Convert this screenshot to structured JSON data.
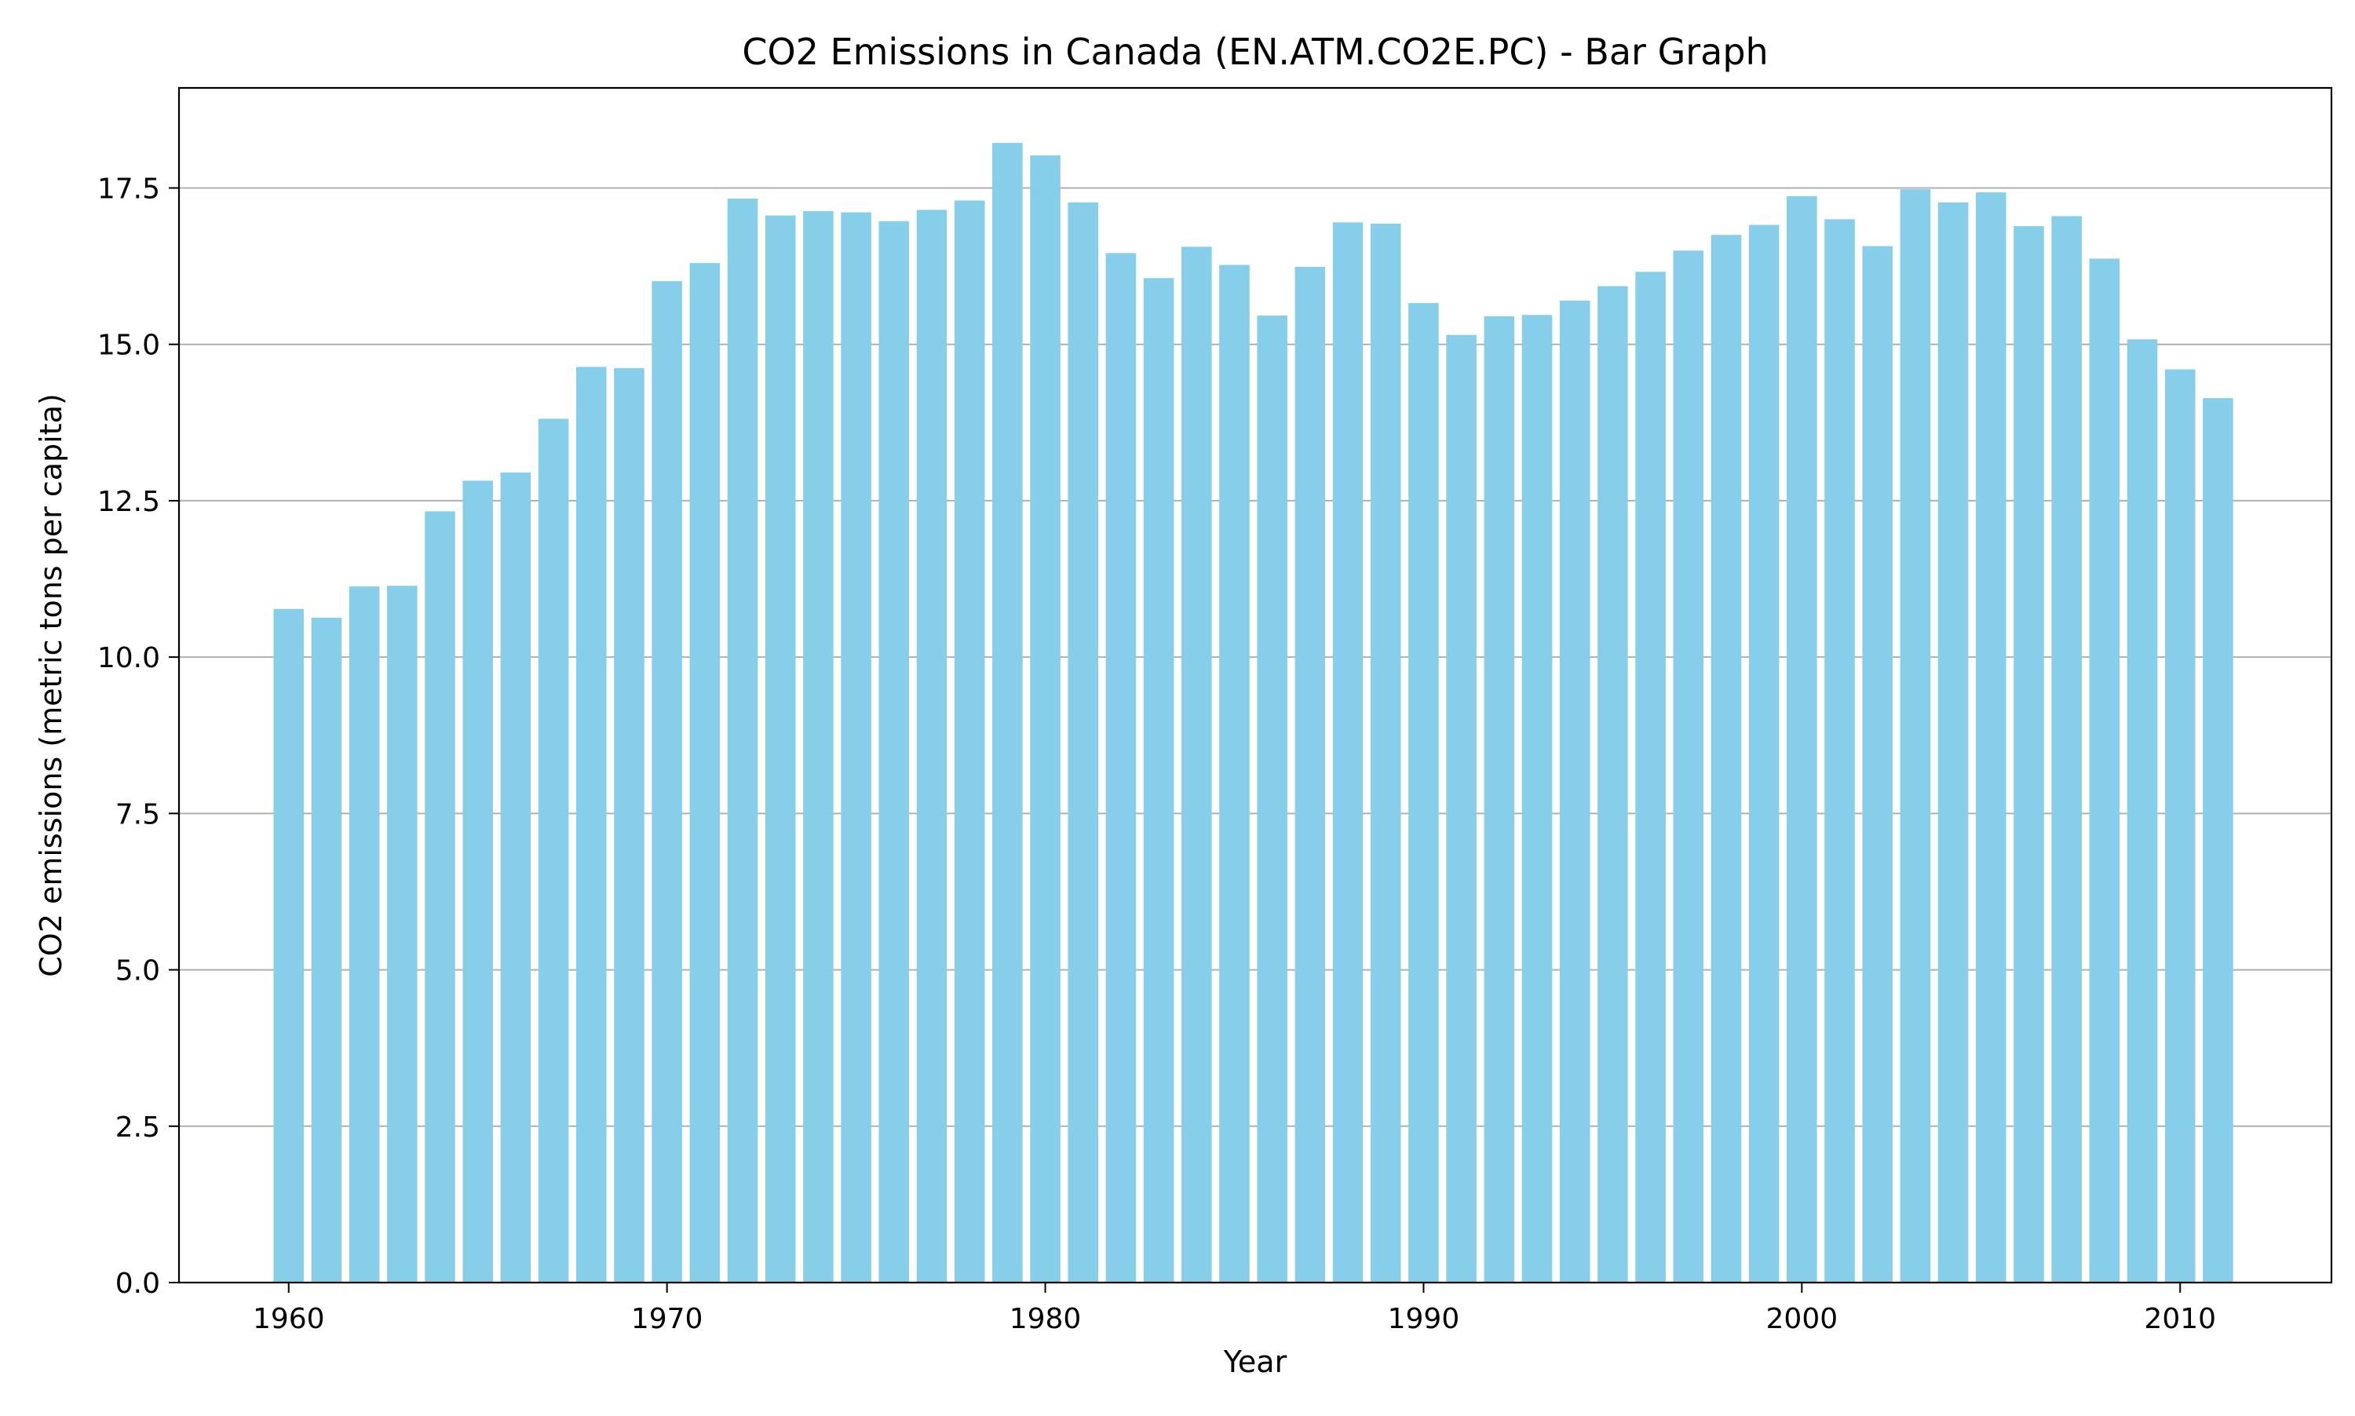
{
  "chart_data": {
    "type": "bar",
    "title": "CO2 Emissions in Canada (EN.ATM.CO2E.PC) - Bar Graph",
    "xlabel": "Year",
    "ylabel": "CO2 emissions (metric tons per capita)",
    "x": [
      1960,
      1961,
      1962,
      1963,
      1964,
      1965,
      1966,
      1967,
      1968,
      1969,
      1970,
      1971,
      1972,
      1973,
      1974,
      1975,
      1976,
      1977,
      1978,
      1979,
      1980,
      1981,
      1982,
      1983,
      1984,
      1985,
      1986,
      1987,
      1988,
      1989,
      1990,
      1991,
      1992,
      1993,
      1994,
      1995,
      1996,
      1997,
      1998,
      1999,
      2000,
      2001,
      2002,
      2003,
      2004,
      2005,
      2006,
      2007,
      2008,
      2009,
      2010,
      2011
    ],
    "values": [
      10.77,
      10.63,
      11.13,
      11.14,
      12.33,
      12.82,
      12.95,
      13.81,
      14.64,
      14.62,
      16.01,
      16.3,
      17.33,
      17.06,
      17.13,
      17.11,
      16.97,
      17.15,
      17.3,
      18.22,
      18.02,
      17.27,
      16.46,
      16.06,
      16.56,
      16.27,
      15.46,
      16.24,
      16.95,
      16.93,
      15.66,
      15.15,
      15.45,
      15.47,
      15.7,
      15.93,
      16.16,
      16.5,
      16.75,
      16.91,
      17.37,
      17.0,
      16.57,
      17.48,
      17.27,
      17.43,
      16.89,
      17.05,
      16.37,
      15.08,
      14.6,
      14.14
    ],
    "x_ticks": [
      1960,
      1970,
      1980,
      1990,
      2000,
      2010
    ],
    "y_ticks": [
      0.0,
      2.5,
      5.0,
      7.5,
      10.0,
      12.5,
      15.0,
      17.5
    ],
    "xlim": [
      1957.1,
      2014.0
    ],
    "ylim": [
      0,
      19.1
    ],
    "grid": "horizontal",
    "bar_color": "#87CEEB",
    "grid_color": "#b0b0b0",
    "axis_color": "#000000"
  }
}
